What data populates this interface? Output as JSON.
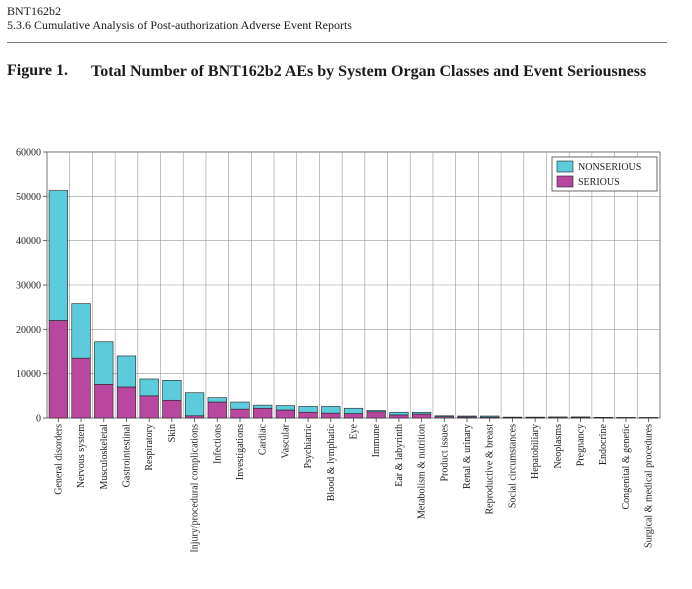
{
  "header": {
    "product": "BNT162b2",
    "section": "5.3.6 Cumulative Analysis of Post-authorization Adverse Event Reports"
  },
  "figure": {
    "label": "Figure 1.",
    "title": "Total Number of BNT162b2 AEs by System Organ Classes and Event Seriousness"
  },
  "chart_data": {
    "type": "bar",
    "stacked": true,
    "title": "",
    "xlabel": "",
    "ylabel": "",
    "ylim": [
      0,
      60000
    ],
    "yticks": [
      "0",
      "10000",
      "20000",
      "30000",
      "40000",
      "50000",
      "60000"
    ],
    "grid": true,
    "legend_position": "top-right",
    "categories": [
      "General disorders",
      "Nervous system",
      "Musculoskeletal",
      "Gastrointestinal",
      "Respiratory",
      "Skin",
      "Injury/procedural complications",
      "Infections",
      "Investigations",
      "Cardiac",
      "Vascular",
      "Psychiatric",
      "Blood & lymphatic",
      "Eye",
      "Immune",
      "Ear & labyrinth",
      "Metabolism & nutrition",
      "Product issues",
      "Renal & urinary",
      "Reproductive & breast",
      "Social circumstances",
      "Hepatobiliary",
      "Neoplasms",
      "Pregnancy",
      "Endocrine",
      "Congenital & genetic",
      "Surgical & medical procedures"
    ],
    "series": [
      {
        "name": "SERIOUS",
        "color": "#b9479f",
        "values": [
          22000,
          13500,
          7600,
          7000,
          5000,
          4000,
          500,
          3600,
          2000,
          2200,
          1800,
          1300,
          1100,
          1000,
          1400,
          700,
          900,
          300,
          250,
          200,
          100,
          150,
          200,
          100,
          80,
          70,
          60
        ]
      },
      {
        "name": "NONSERIOUS",
        "color": "#5ccbdb",
        "values": [
          29300,
          12300,
          9600,
          7000,
          3800,
          4500,
          5200,
          1000,
          1600,
          700,
          1000,
          1300,
          1500,
          1200,
          300,
          600,
          400,
          200,
          200,
          250,
          100,
          50,
          30,
          150,
          70,
          50,
          60
        ]
      }
    ]
  }
}
